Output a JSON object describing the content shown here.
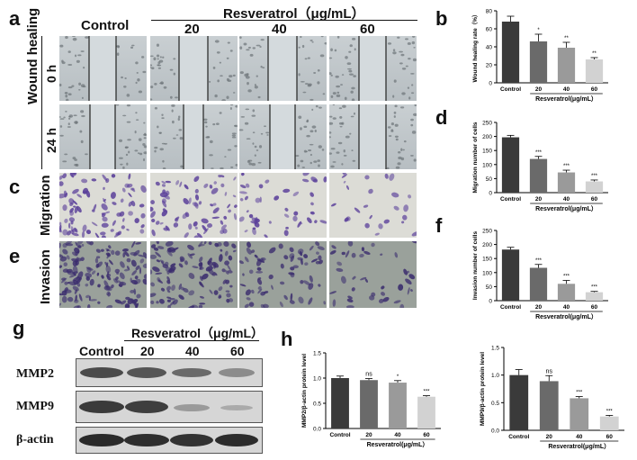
{
  "panel_labels": {
    "a": "a",
    "b": "b",
    "c": "c",
    "d": "d",
    "e": "e",
    "f": "f",
    "g": "g",
    "h": "h"
  },
  "header": {
    "control": "Control",
    "treatment": "Resveratrol（μg/mL）",
    "doses": [
      "20",
      "40",
      "60"
    ]
  },
  "rows": {
    "wound_healing": "Wound healing",
    "h0": "0 h",
    "h24": "24 h",
    "migration": "Migration",
    "invasion": "Invasion"
  },
  "blot": {
    "header_treatment": "Resveratrol（μg/mL）",
    "columns": [
      "Control",
      "20",
      "40",
      "60"
    ],
    "proteins": [
      "MMP2",
      "MMP9",
      "β-actin"
    ]
  },
  "chart_data": [
    {
      "type": "bar",
      "panel": "b",
      "categories": [
        "Control",
        "20",
        "40",
        "60"
      ],
      "values": [
        68,
        46,
        39,
        26
      ],
      "errors": [
        6,
        8,
        6,
        2
      ],
      "ylim": [
        0,
        80
      ],
      "yticks": [
        0,
        20,
        40,
        60,
        80
      ],
      "ylabel": "Wound healing rate（%）",
      "xlabel": "Resveratrol(μg/mL）",
      "significance": [
        "",
        "*",
        "**",
        "**"
      ]
    },
    {
      "type": "bar",
      "panel": "d",
      "categories": [
        "Control",
        "20",
        "40",
        "60"
      ],
      "values": [
        197,
        120,
        72,
        40
      ],
      "errors": [
        7,
        9,
        8,
        5
      ],
      "ylim": [
        0,
        250
      ],
      "yticks": [
        0,
        50,
        100,
        150,
        200,
        250
      ],
      "ylabel": "Migration number of cells",
      "xlabel": "Resveratrol(μg/mL）",
      "significance": [
        "",
        "***",
        "***",
        "***"
      ]
    },
    {
      "type": "bar",
      "panel": "f",
      "categories": [
        "Control",
        "20",
        "40",
        "60"
      ],
      "values": [
        182,
        117,
        60,
        30
      ],
      "errors": [
        8,
        12,
        12,
        3
      ],
      "ylim": [
        0,
        250
      ],
      "yticks": [
        0,
        50,
        100,
        150,
        200,
        250
      ],
      "ylabel": "Invasion number of cells",
      "xlabel": "Resveratrol(μg/mL）",
      "significance": [
        "",
        "***",
        "***",
        "***"
      ]
    },
    {
      "type": "bar",
      "panel": "h",
      "categories": [
        "Control",
        "20",
        "40",
        "60"
      ],
      "values": [
        1.0,
        0.96,
        0.91,
        0.63
      ],
      "errors": [
        0.04,
        0.03,
        0.04,
        0.02
      ],
      "ylim": [
        0,
        1.5
      ],
      "yticks": [
        0.0,
        0.5,
        1.0,
        1.5
      ],
      "ylabel": "MMP2/β-actin protein level",
      "xlabel": "Resveratrol(μg/mL）",
      "significance": [
        "",
        "ns",
        "*",
        "***"
      ]
    },
    {
      "type": "bar",
      "panel": "h",
      "categories": [
        "Control",
        "20",
        "40",
        "60"
      ],
      "values": [
        1.0,
        0.89,
        0.58,
        0.25
      ],
      "errors": [
        0.1,
        0.1,
        0.03,
        0.02
      ],
      "ylim": [
        0,
        1.5
      ],
      "yticks": [
        0.0,
        0.5,
        1.0,
        1.5
      ],
      "ylabel": "MMP9/β-actin protein level",
      "xlabel": "Resveratrol(μg/mL）",
      "significance": [
        "",
        "ns",
        "***",
        "***"
      ]
    }
  ],
  "colors": {
    "bars": [
      "#3a3a3a",
      "#6a6a6a",
      "#9a9a9a",
      "#d2d2d2"
    ]
  }
}
